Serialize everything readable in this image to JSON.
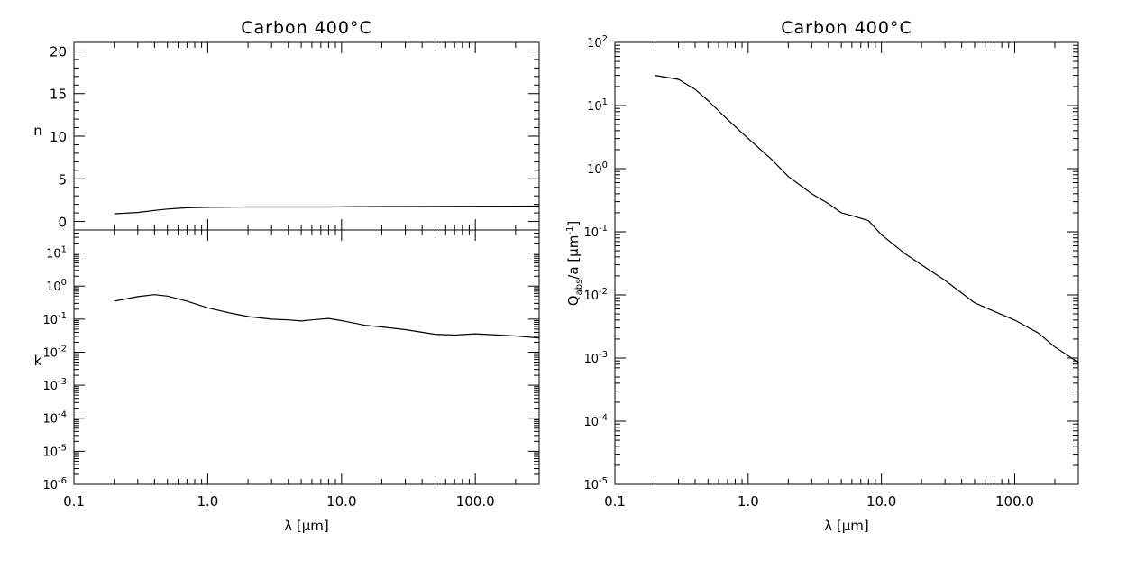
{
  "chart_data": [
    {
      "type": "line",
      "title": "Carbon 400°C",
      "xlabel": "λ [μm]",
      "ylabel": "n",
      "xscale": "log",
      "xlim": [
        0.1,
        300
      ],
      "ylim": [
        -1,
        21
      ],
      "x_tick_labels": [
        "0.1",
        "1.0",
        "10.0",
        "100.0"
      ],
      "y_ticks": [
        0,
        5,
        10,
        15,
        20
      ],
      "series": [
        {
          "x": [
            0.2,
            0.3,
            0.4,
            0.5,
            0.7,
            1.0,
            2.0,
            3.0,
            5.0,
            8.0,
            10.0,
            20.0,
            30.0,
            50.0,
            100.0,
            200.0,
            300.0
          ],
          "values": [
            0.9,
            1.05,
            1.3,
            1.45,
            1.6,
            1.65,
            1.7,
            1.7,
            1.7,
            1.7,
            1.72,
            1.75,
            1.75,
            1.76,
            1.78,
            1.79,
            1.8
          ]
        }
      ]
    },
    {
      "type": "line",
      "title": "",
      "xlabel": "λ [μm]",
      "ylabel": "k",
      "xscale": "log",
      "yscale": "log",
      "xlim": [
        0.1,
        300
      ],
      "ylim": [
        1e-06,
        50
      ],
      "x_tick_labels": [
        "0.1",
        "1.0",
        "10.0",
        "100.0"
      ],
      "y_tick_labels": [
        {
          "base": "10",
          "exp": "-6"
        },
        {
          "base": "10",
          "exp": "-5"
        },
        {
          "base": "10",
          "exp": "-4"
        },
        {
          "base": "10",
          "exp": "-3"
        },
        {
          "base": "10",
          "exp": "-2"
        },
        {
          "base": "10",
          "exp": "-1"
        },
        {
          "base": "10",
          "exp": "0"
        },
        {
          "base": "10",
          "exp": "1"
        }
      ],
      "series": [
        {
          "x": [
            0.2,
            0.3,
            0.4,
            0.5,
            0.7,
            1.0,
            1.5,
            2.0,
            3.0,
            4.0,
            5.0,
            6.0,
            8.0,
            10.0,
            15.0,
            20.0,
            30.0,
            50.0,
            70.0,
            100.0,
            150.0,
            200.0,
            300.0
          ],
          "values": [
            0.35,
            0.48,
            0.55,
            0.5,
            0.35,
            0.22,
            0.15,
            0.12,
            0.1,
            0.095,
            0.088,
            0.095,
            0.105,
            0.09,
            0.065,
            0.058,
            0.048,
            0.035,
            0.033,
            0.036,
            0.033,
            0.031,
            0.027
          ]
        }
      ]
    },
    {
      "type": "line",
      "title": "Carbon 400°C",
      "xlabel": "λ [μm]",
      "ylabel": {
        "main": "Q",
        "sub": "abs",
        "rest": "/a [μm",
        "sup": "-1",
        "close": "]"
      },
      "xscale": "log",
      "yscale": "log",
      "xlim": [
        0.1,
        300
      ],
      "ylim": [
        1e-05,
        100
      ],
      "x_tick_labels": [
        "0.1",
        "1.0",
        "10.0",
        "100.0"
      ],
      "y_tick_labels": [
        {
          "base": "10",
          "exp": "-5"
        },
        {
          "base": "10",
          "exp": "-4"
        },
        {
          "base": "10",
          "exp": "-3"
        },
        {
          "base": "10",
          "exp": "-2"
        },
        {
          "base": "10",
          "exp": "-1"
        },
        {
          "base": "10",
          "exp": "0"
        },
        {
          "base": "10",
          "exp": "1"
        },
        {
          "base": "10",
          "exp": "2"
        }
      ],
      "series": [
        {
          "x": [
            0.2,
            0.3,
            0.4,
            0.5,
            0.7,
            1.0,
            1.5,
            2.0,
            3.0,
            4.0,
            5.0,
            6.0,
            8.0,
            10.0,
            15.0,
            20.0,
            30.0,
            50.0,
            70.0,
            100.0,
            150.0,
            200.0,
            300.0
          ],
          "values": [
            30,
            26,
            18,
            12,
            6,
            3,
            1.4,
            0.75,
            0.4,
            0.28,
            0.2,
            0.18,
            0.15,
            0.09,
            0.045,
            0.03,
            0.017,
            0.0075,
            0.0055,
            0.004,
            0.0025,
            0.0015,
            0.00085
          ]
        }
      ]
    }
  ]
}
